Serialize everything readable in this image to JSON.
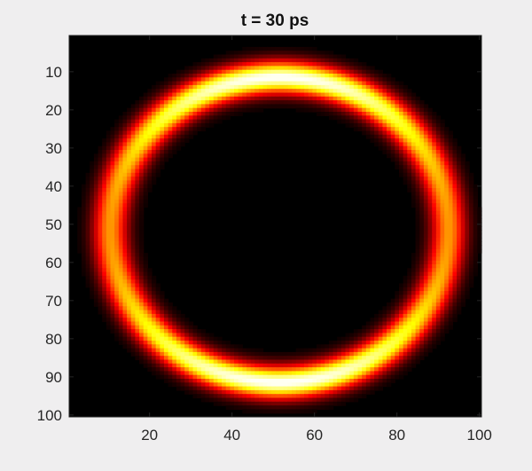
{
  "chart_data": {
    "type": "heatmap",
    "title": "t = 30 ps",
    "xlabel": "",
    "ylabel": "",
    "xlim": [
      0.5,
      100.5
    ],
    "ylim": [
      0.5,
      100.5
    ],
    "y_reversed": true,
    "grid": false,
    "colormap": "hot",
    "background_value": 0,
    "x_ticks": [
      20,
      40,
      60,
      80,
      100
    ],
    "y_ticks": [
      10,
      20,
      30,
      40,
      50,
      60,
      70,
      80,
      90,
      100
    ],
    "ring": {
      "center_x": 51.5,
      "center_y": 51.5,
      "radius_x": 41,
      "radius_y": 40,
      "thickness": 3.0,
      "peak_value": 1.0,
      "brightest_near": "top and bottom",
      "dimmest_near": "left and right"
    }
  }
}
